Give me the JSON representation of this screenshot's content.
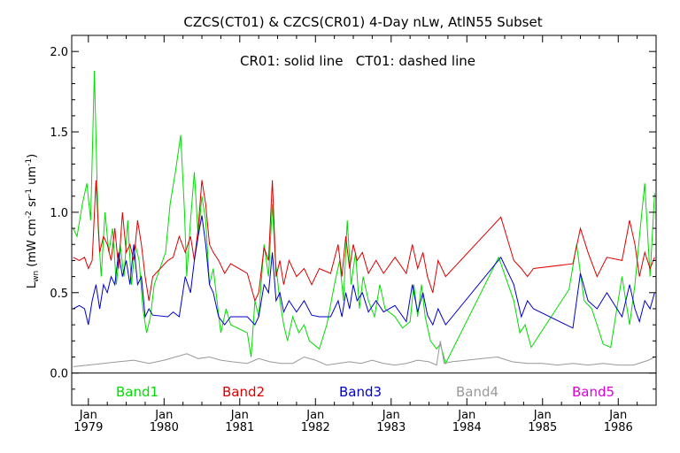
{
  "chart_data": {
    "type": "line",
    "title": "CZCS(CT01) & CZCS(CR01) 4-Day nLw, AtlN55 Subset",
    "annotation": "CR01: solid line   CT01: dashed line",
    "ylabel": "L",
    "ylabel_sub": "wn",
    "ylabel_rest": " (mW cm",
    "ylabel_sup1": "-2",
    "ylabel_rest2": " sr",
    "ylabel_sup2": "-1",
    "ylabel_rest3": " um",
    "ylabel_sup3": "-1",
    "ylabel_close": ")",
    "xlim": [
      1978.78,
      1986.5
    ],
    "ylim": [
      -0.2,
      2.1
    ],
    "y_ticks": [
      0.0,
      0.5,
      1.0,
      1.5,
      2.0
    ],
    "y_tick_labels": [
      "0.0",
      "0.5",
      "1.0",
      "1.5",
      "2.0"
    ],
    "x_ticks": [
      1979,
      1980,
      1981,
      1982,
      1983,
      1984,
      1985,
      1986
    ],
    "x_tick_month": "Jan",
    "x_tick_labels": [
      "1979",
      "1980",
      "1981",
      "1982",
      "1983",
      "1984",
      "1985",
      "1986"
    ],
    "zero_line": true,
    "legend": [
      {
        "name": "Band1",
        "color": "#00dd00"
      },
      {
        "name": "Band2",
        "color": "#dd0000"
      },
      {
        "name": "Band3",
        "color": "#0000cc"
      },
      {
        "name": "Band4",
        "color": "#999999"
      },
      {
        "name": "Band5",
        "color": "#dd00dd"
      }
    ],
    "series": [
      {
        "name": "Band1",
        "color": "#00dd00",
        "x": [
          1978.8,
          1978.85,
          1978.92,
          1978.98,
          1979.03,
          1979.08,
          1979.13,
          1979.17,
          1979.22,
          1979.27,
          1979.32,
          1979.37,
          1979.42,
          1979.47,
          1979.52,
          1979.57,
          1979.62,
          1979.67,
          1979.72,
          1979.77,
          1979.82,
          1979.87,
          1980.02,
          1980.08,
          1980.15,
          1980.22,
          1980.27,
          1980.3,
          1980.35,
          1980.4,
          1980.45,
          1980.5,
          1980.55,
          1980.6,
          1980.65,
          1980.7,
          1980.75,
          1980.82,
          1980.88,
          1981.1,
          1981.15,
          1981.2,
          1981.25,
          1981.32,
          1981.38,
          1981.43,
          1981.47,
          1981.53,
          1981.58,
          1981.63,
          1981.7,
          1981.78,
          1981.85,
          1981.92,
          1982.05,
          1982.15,
          1982.25,
          1982.32,
          1982.37,
          1982.42,
          1982.47,
          1982.53,
          1982.58,
          1982.63,
          1982.7,
          1982.78,
          1982.85,
          1982.92,
          1983.05,
          1983.15,
          1983.25,
          1983.3,
          1983.35,
          1983.4,
          1983.45,
          1983.52,
          1983.6,
          1983.65,
          1983.72,
          1984.42,
          1984.62,
          1984.7,
          1984.77,
          1984.85,
          1985.35,
          1985.45,
          1985.55,
          1985.65,
          1985.72,
          1985.8,
          1985.9,
          1986.05,
          1986.15,
          1986.22,
          1986.28,
          1986.35,
          1986.42,
          1986.48
        ],
        "y": [
          0.9,
          0.85,
          1.05,
          1.18,
          0.95,
          1.88,
          0.9,
          0.6,
          1.0,
          0.75,
          0.9,
          0.55,
          0.8,
          0.6,
          0.95,
          0.55,
          0.8,
          0.7,
          0.4,
          0.25,
          0.35,
          0.55,
          0.75,
          1.05,
          1.25,
          1.48,
          1.0,
          0.6,
          0.95,
          1.25,
          0.85,
          1.1,
          0.95,
          0.55,
          0.65,
          0.45,
          0.25,
          0.4,
          0.3,
          0.25,
          0.1,
          0.45,
          0.35,
          0.8,
          0.6,
          1.05,
          0.7,
          0.45,
          0.3,
          0.2,
          0.35,
          0.25,
          0.3,
          0.2,
          0.15,
          0.3,
          0.55,
          0.7,
          0.45,
          0.95,
          0.55,
          0.75,
          0.4,
          0.6,
          0.45,
          0.35,
          0.55,
          0.4,
          0.35,
          0.28,
          0.32,
          0.55,
          0.35,
          0.55,
          0.35,
          0.2,
          0.15,
          0.18,
          0.06,
          0.72,
          0.45,
          0.25,
          0.3,
          0.16,
          0.52,
          0.8,
          0.45,
          0.4,
          0.3,
          0.18,
          0.16,
          0.6,
          0.3,
          0.55,
          0.85,
          1.18,
          0.6,
          1.12
        ]
      },
      {
        "name": "Band2",
        "color": "#dd0000",
        "x": [
          1978.8,
          1978.88,
          1978.95,
          1979.0,
          1979.05,
          1979.1,
          1979.15,
          1979.2,
          1979.25,
          1979.3,
          1979.35,
          1979.4,
          1979.45,
          1979.5,
          1979.55,
          1979.6,
          1979.65,
          1979.7,
          1979.75,
          1979.8,
          1979.85,
          1980.05,
          1980.12,
          1980.2,
          1980.28,
          1980.35,
          1980.4,
          1980.45,
          1980.5,
          1980.55,
          1980.6,
          1980.65,
          1980.72,
          1980.8,
          1980.88,
          1981.1,
          1981.2,
          1981.25,
          1981.32,
          1981.38,
          1981.43,
          1981.48,
          1981.53,
          1981.58,
          1981.65,
          1981.75,
          1981.85,
          1981.95,
          1982.05,
          1982.2,
          1982.3,
          1982.35,
          1982.4,
          1982.45,
          1982.5,
          1982.55,
          1982.62,
          1982.7,
          1982.8,
          1982.9,
          1983.05,
          1983.2,
          1983.28,
          1983.35,
          1983.42,
          1983.48,
          1983.55,
          1983.62,
          1983.72,
          1984.45,
          1984.62,
          1984.72,
          1984.8,
          1984.88,
          1985.4,
          1985.5,
          1985.6,
          1985.72,
          1985.85,
          1986.05,
          1986.15,
          1986.22,
          1986.28,
          1986.35,
          1986.42,
          1986.48
        ],
        "y": [
          0.72,
          0.7,
          0.72,
          0.65,
          0.7,
          1.2,
          0.75,
          0.85,
          0.8,
          0.7,
          0.9,
          0.65,
          1.0,
          0.75,
          0.8,
          0.7,
          0.95,
          0.8,
          0.6,
          0.45,
          0.6,
          0.7,
          0.72,
          0.85,
          0.75,
          0.85,
          0.7,
          0.9,
          1.2,
          1.05,
          0.8,
          0.75,
          0.7,
          0.62,
          0.68,
          0.62,
          0.45,
          0.5,
          0.78,
          0.7,
          1.2,
          0.6,
          0.7,
          0.55,
          0.7,
          0.6,
          0.65,
          0.55,
          0.65,
          0.62,
          0.8,
          0.6,
          0.85,
          0.65,
          0.8,
          0.7,
          0.75,
          0.62,
          0.7,
          0.62,
          0.72,
          0.62,
          0.8,
          0.65,
          0.75,
          0.6,
          0.5,
          0.7,
          0.6,
          0.97,
          0.7,
          0.65,
          0.6,
          0.65,
          0.68,
          0.9,
          0.75,
          0.6,
          0.72,
          0.7,
          0.95,
          0.8,
          0.6,
          0.75,
          0.65,
          0.72
        ]
      },
      {
        "name": "Band3",
        "color": "#0000cc",
        "x": [
          1978.8,
          1978.88,
          1978.95,
          1979.0,
          1979.05,
          1979.1,
          1979.15,
          1979.2,
          1979.25,
          1979.3,
          1979.35,
          1979.4,
          1979.45,
          1979.5,
          1979.55,
          1979.6,
          1979.65,
          1979.7,
          1979.75,
          1979.8,
          1979.85,
          1980.05,
          1980.12,
          1980.2,
          1980.28,
          1980.35,
          1980.4,
          1980.45,
          1980.5,
          1980.55,
          1980.6,
          1980.65,
          1980.72,
          1980.8,
          1980.88,
          1981.1,
          1981.2,
          1981.25,
          1981.32,
          1981.38,
          1981.43,
          1981.48,
          1981.53,
          1981.58,
          1981.65,
          1981.75,
          1981.85,
          1981.95,
          1982.05,
          1982.2,
          1982.3,
          1982.35,
          1982.4,
          1982.45,
          1982.5,
          1982.55,
          1982.62,
          1982.7,
          1982.8,
          1982.9,
          1983.05,
          1983.2,
          1983.28,
          1983.35,
          1983.42,
          1983.48,
          1983.55,
          1983.62,
          1983.72,
          1984.45,
          1984.62,
          1984.72,
          1984.8,
          1984.88,
          1985.4,
          1985.5,
          1985.6,
          1985.72,
          1985.85,
          1986.05,
          1986.15,
          1986.22,
          1986.28,
          1986.35,
          1986.42,
          1986.48
        ],
        "y": [
          0.4,
          0.42,
          0.4,
          0.3,
          0.45,
          0.55,
          0.4,
          0.55,
          0.5,
          0.6,
          0.55,
          0.75,
          0.6,
          0.7,
          0.55,
          0.8,
          0.55,
          0.6,
          0.35,
          0.4,
          0.36,
          0.35,
          0.38,
          0.35,
          0.6,
          0.5,
          0.7,
          0.85,
          0.98,
          0.8,
          0.55,
          0.5,
          0.35,
          0.3,
          0.35,
          0.35,
          0.3,
          0.35,
          0.55,
          0.5,
          0.75,
          0.45,
          0.5,
          0.38,
          0.45,
          0.38,
          0.45,
          0.36,
          0.35,
          0.35,
          0.45,
          0.35,
          0.5,
          0.4,
          0.55,
          0.45,
          0.5,
          0.38,
          0.45,
          0.38,
          0.42,
          0.32,
          0.55,
          0.38,
          0.5,
          0.36,
          0.3,
          0.4,
          0.3,
          0.72,
          0.55,
          0.35,
          0.45,
          0.4,
          0.28,
          0.62,
          0.45,
          0.4,
          0.5,
          0.35,
          0.55,
          0.4,
          0.32,
          0.45,
          0.4,
          0.5
        ]
      },
      {
        "name": "Band4",
        "color": "#999999",
        "x": [
          1978.8,
          1979.0,
          1979.2,
          1979.4,
          1979.6,
          1979.8,
          1980.0,
          1980.15,
          1980.3,
          1980.45,
          1980.6,
          1980.75,
          1980.9,
          1981.1,
          1981.25,
          1981.4,
          1981.55,
          1981.7,
          1981.85,
          1982.0,
          1982.15,
          1982.3,
          1982.45,
          1982.6,
          1982.75,
          1982.9,
          1983.05,
          1983.2,
          1983.35,
          1983.5,
          1983.6,
          1983.65,
          1983.7,
          1983.8,
          1984.0,
          1984.2,
          1984.4,
          1984.6,
          1984.8,
          1985.0,
          1985.2,
          1985.4,
          1985.6,
          1985.8,
          1986.0,
          1986.2,
          1986.4,
          1986.48
        ],
        "y": [
          0.04,
          0.05,
          0.06,
          0.07,
          0.08,
          0.06,
          0.08,
          0.1,
          0.12,
          0.09,
          0.1,
          0.08,
          0.07,
          0.06,
          0.09,
          0.07,
          0.06,
          0.06,
          0.1,
          0.08,
          0.05,
          0.06,
          0.07,
          0.06,
          0.08,
          0.06,
          0.05,
          0.06,
          0.08,
          0.07,
          0.05,
          0.2,
          0.06,
          0.07,
          0.08,
          0.09,
          0.1,
          0.07,
          0.06,
          0.06,
          0.05,
          0.06,
          0.05,
          0.06,
          0.05,
          0.05,
          0.08,
          0.1
        ]
      }
    ]
  }
}
